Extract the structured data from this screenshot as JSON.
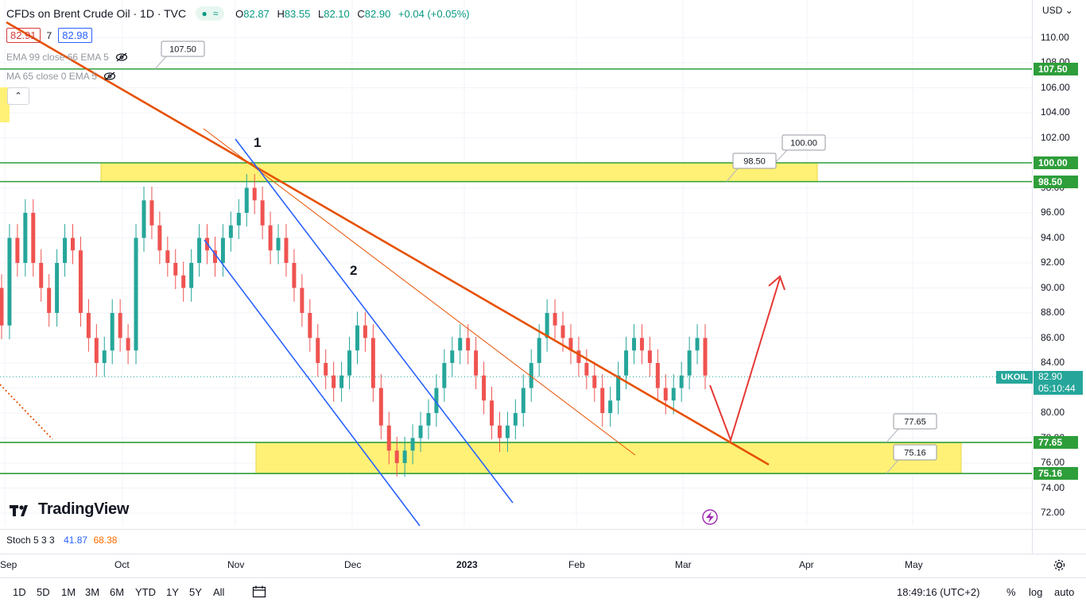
{
  "header": {
    "title": "CFDs on Brent Crude Oil · 1D · TVC",
    "pill_a": "≈",
    "ohlc": [
      {
        "k": "O",
        "v": "82.87"
      },
      {
        "k": "H",
        "v": "83.55"
      },
      {
        "k": "L",
        "v": "82.10"
      },
      {
        "k": "C",
        "v": "82.90"
      }
    ],
    "change": "+0.04 (+0.05%)",
    "bid": "82.91",
    "spread": "7",
    "ask": "82.98",
    "indicator1": "EMA 99 close 66 EMA 5",
    "indicator2": "MA 65 close 0 EMA 5",
    "collapse": "⌃"
  },
  "currency": "USD",
  "currency_caret": "⌄",
  "symbol_tag": "UKOIL",
  "last_price": "82.90",
  "countdown": "05:10:44",
  "stoch": {
    "label": "Stoch 5 3 3",
    "k": "41.87",
    "d": "68.38"
  },
  "brand": "TradingView",
  "timeframes": [
    "1D",
    "5D",
    "1M",
    "3M",
    "6M",
    "YTD",
    "1Y",
    "5Y",
    "All"
  ],
  "clock": "18:49:16 (UTC+2)",
  "axis_toggles": [
    "%",
    "log",
    "auto"
  ],
  "colors": {
    "up": "#26a69a",
    "down": "#ef5350",
    "level_line": "#2e9e3a",
    "zone_fill": "#fff176",
    "trend_main": "#e65100",
    "channel": "#2962ff",
    "arrow": "#e53935"
  },
  "chart_data": {
    "type": "candlestick",
    "symbol": "UKOIL",
    "timeframe": "1D",
    "price_axis": {
      "ticks": [
        72.0,
        74.0,
        76.0,
        78.0,
        80.0,
        82.0,
        84.0,
        86.0,
        88.0,
        90.0,
        92.0,
        94.0,
        96.0,
        98.0,
        100.0,
        102.0,
        104.0,
        106.0,
        108.0,
        110.0
      ],
      "range": [
        70.8,
        112.5
      ]
    },
    "time_axis": {
      "labels": [
        "Sep",
        "Oct",
        "Nov",
        "Dec",
        "2023",
        "Feb",
        "Mar",
        "Apr",
        "May"
      ]
    },
    "horizontal_levels": [
      {
        "price": 107.5,
        "label": "107.50"
      },
      {
        "price": 100.0,
        "label": "100.00"
      },
      {
        "price": 98.5,
        "label": "98.50"
      },
      {
        "price": 77.65,
        "label": "77.65"
      },
      {
        "price": 75.16,
        "label": "75.16"
      }
    ],
    "zones": [
      {
        "from": 98.5,
        "to": 100.0,
        "start": "Oct",
        "end": "Apr"
      },
      {
        "from": 75.16,
        "to": 77.65,
        "start": "Dec",
        "end": "Apr"
      }
    ],
    "annotations": [
      {
        "text": "1",
        "date": "Nov",
        "price": 100.3
      },
      {
        "text": "2",
        "date": "Dec",
        "price": 92.4
      }
    ],
    "closes_approx": [
      87,
      94,
      92,
      96,
      92,
      90,
      88,
      92,
      94,
      93,
      88,
      86,
      84,
      85,
      88,
      86,
      85,
      94,
      97,
      95,
      93,
      92,
      91,
      90,
      92,
      94,
      93,
      92,
      94,
      95,
      96,
      98,
      97,
      95,
      93,
      94,
      92,
      90,
      88,
      86,
      84,
      83,
      82,
      83,
      85,
      87,
      86,
      82,
      79,
      77,
      76,
      77,
      78,
      79,
      80,
      82,
      84,
      85,
      86,
      85,
      83,
      81,
      79,
      78,
      79,
      80,
      82,
      84,
      86,
      88,
      87,
      86,
      85,
      84,
      83,
      82,
      80,
      81,
      83,
      85,
      86,
      85,
      84,
      82,
      81,
      82,
      83,
      85,
      86,
      83
    ]
  }
}
